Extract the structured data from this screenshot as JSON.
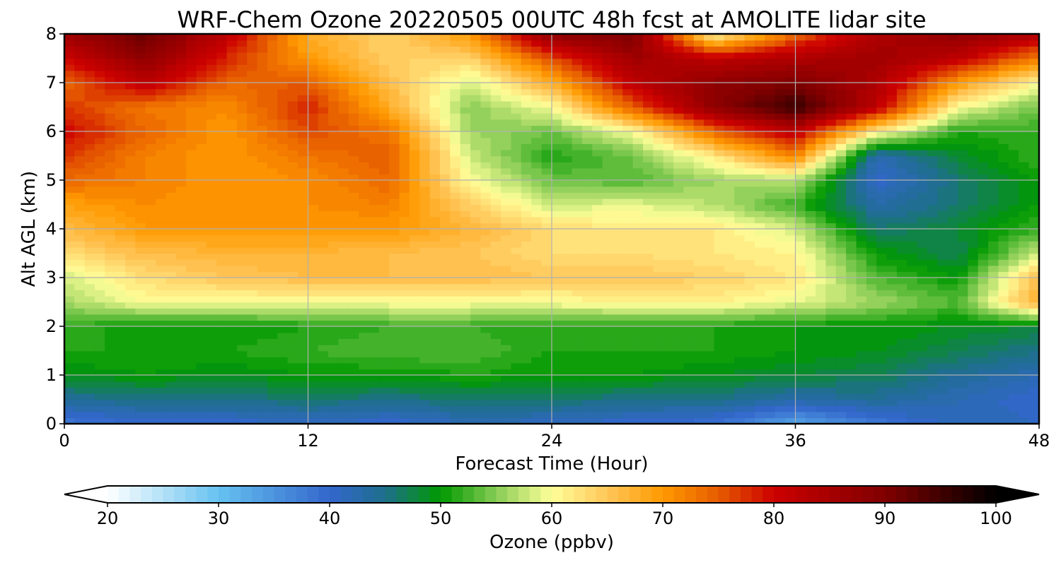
{
  "chart_data": {
    "type": "heatmap",
    "title": "WRF-Chem Ozone  20220505 00UTC 48h fcst at AMOLITE lidar site",
    "xlabel": "Forecast Time (Hour)",
    "ylabel": "Alt AGL (km)",
    "xlim": [
      0,
      48
    ],
    "ylim": [
      0,
      8
    ],
    "xticks": [
      "0",
      "12",
      "24",
      "36",
      "48"
    ],
    "yticks": [
      "0",
      "1",
      "2",
      "3",
      "4",
      "5",
      "6",
      "7",
      "8"
    ],
    "grid": true,
    "x": [
      0,
      4,
      8,
      12,
      16,
      20,
      24,
      28,
      32,
      36,
      40,
      44,
      48
    ],
    "y": [
      0,
      0.5,
      1,
      1.5,
      2,
      2.5,
      3,
      3.5,
      4,
      4.5,
      5,
      5.5,
      6,
      6.5,
      7,
      7.5,
      8
    ],
    "values": [
      [
        38,
        40,
        40,
        41,
        40,
        42,
        41,
        40,
        39,
        33,
        38,
        42,
        41
      ],
      [
        44,
        45,
        45,
        46,
        45,
        46,
        46,
        45,
        45,
        43,
        44,
        42,
        40
      ],
      [
        49,
        50,
        49,
        50,
        50,
        51,
        50,
        50,
        49,
        48,
        47,
        44,
        42
      ],
      [
        51,
        51,
        51,
        52,
        53,
        53,
        51,
        51,
        51,
        50,
        49,
        47,
        45
      ],
      [
        52,
        50,
        50,
        51,
        52,
        52,
        51,
        51,
        51,
        50,
        50,
        49,
        48
      ],
      [
        56,
        60,
        60,
        60,
        60,
        60,
        60,
        61,
        61,
        59,
        56,
        53,
        68
      ],
      [
        58,
        63,
        65,
        66,
        66,
        66,
        65,
        65,
        64,
        62,
        53,
        50,
        66
      ],
      [
        63,
        66,
        67,
        67,
        66,
        65,
        63,
        63,
        62,
        61,
        50,
        47,
        58
      ],
      [
        66,
        70,
        70,
        70,
        70,
        67,
        63,
        62,
        62,
        58,
        46,
        48,
        52
      ],
      [
        69,
        71,
        70,
        71,
        72,
        64,
        58,
        59,
        57,
        52,
        43,
        46,
        50
      ],
      [
        74,
        72,
        70,
        71,
        74,
        60,
        54,
        53,
        56,
        57,
        40,
        46,
        50
      ],
      [
        77,
        72,
        70,
        73,
        75,
        58,
        51,
        54,
        62,
        72,
        42,
        48,
        52
      ],
      [
        80,
        74,
        70,
        76,
        73,
        56,
        54,
        60,
        74,
        82,
        62,
        51,
        52
      ],
      [
        77,
        73,
        71,
        78,
        68,
        55,
        60,
        75,
        88,
        96,
        82,
        60,
        54
      ],
      [
        74,
        82,
        74,
        75,
        66,
        58,
        68,
        82,
        88,
        90,
        84,
        70,
        60
      ],
      [
        80,
        88,
        78,
        70,
        64,
        64,
        76,
        86,
        82,
        84,
        86,
        82,
        72
      ],
      [
        86,
        92,
        82,
        68,
        64,
        70,
        88,
        90,
        60,
        74,
        84,
        88,
        84
      ]
    ],
    "colorbar": {
      "label": "Ozone  (ppbv)",
      "min": 20,
      "max": 100,
      "step": 1,
      "extend": "both",
      "ticks": [
        "20",
        "30",
        "40",
        "50",
        "60",
        "70",
        "80",
        "90",
        "100"
      ],
      "ticks_values": [
        20,
        30,
        40,
        50,
        60,
        70,
        80,
        90,
        100
      ],
      "color_stops": [
        [
          20,
          "#ffffff"
        ],
        [
          30,
          "#66c2f0"
        ],
        [
          40,
          "#3366cc"
        ],
        [
          45,
          "#1e6f8c"
        ],
        [
          50,
          "#009900"
        ],
        [
          55,
          "#88cc55"
        ],
        [
          60,
          "#ffff99"
        ],
        [
          65,
          "#ffc65a"
        ],
        [
          70,
          "#ff9900"
        ],
        [
          75,
          "#e65c00"
        ],
        [
          80,
          "#cc0000"
        ],
        [
          90,
          "#800000"
        ],
        [
          100,
          "#000000"
        ]
      ]
    }
  }
}
